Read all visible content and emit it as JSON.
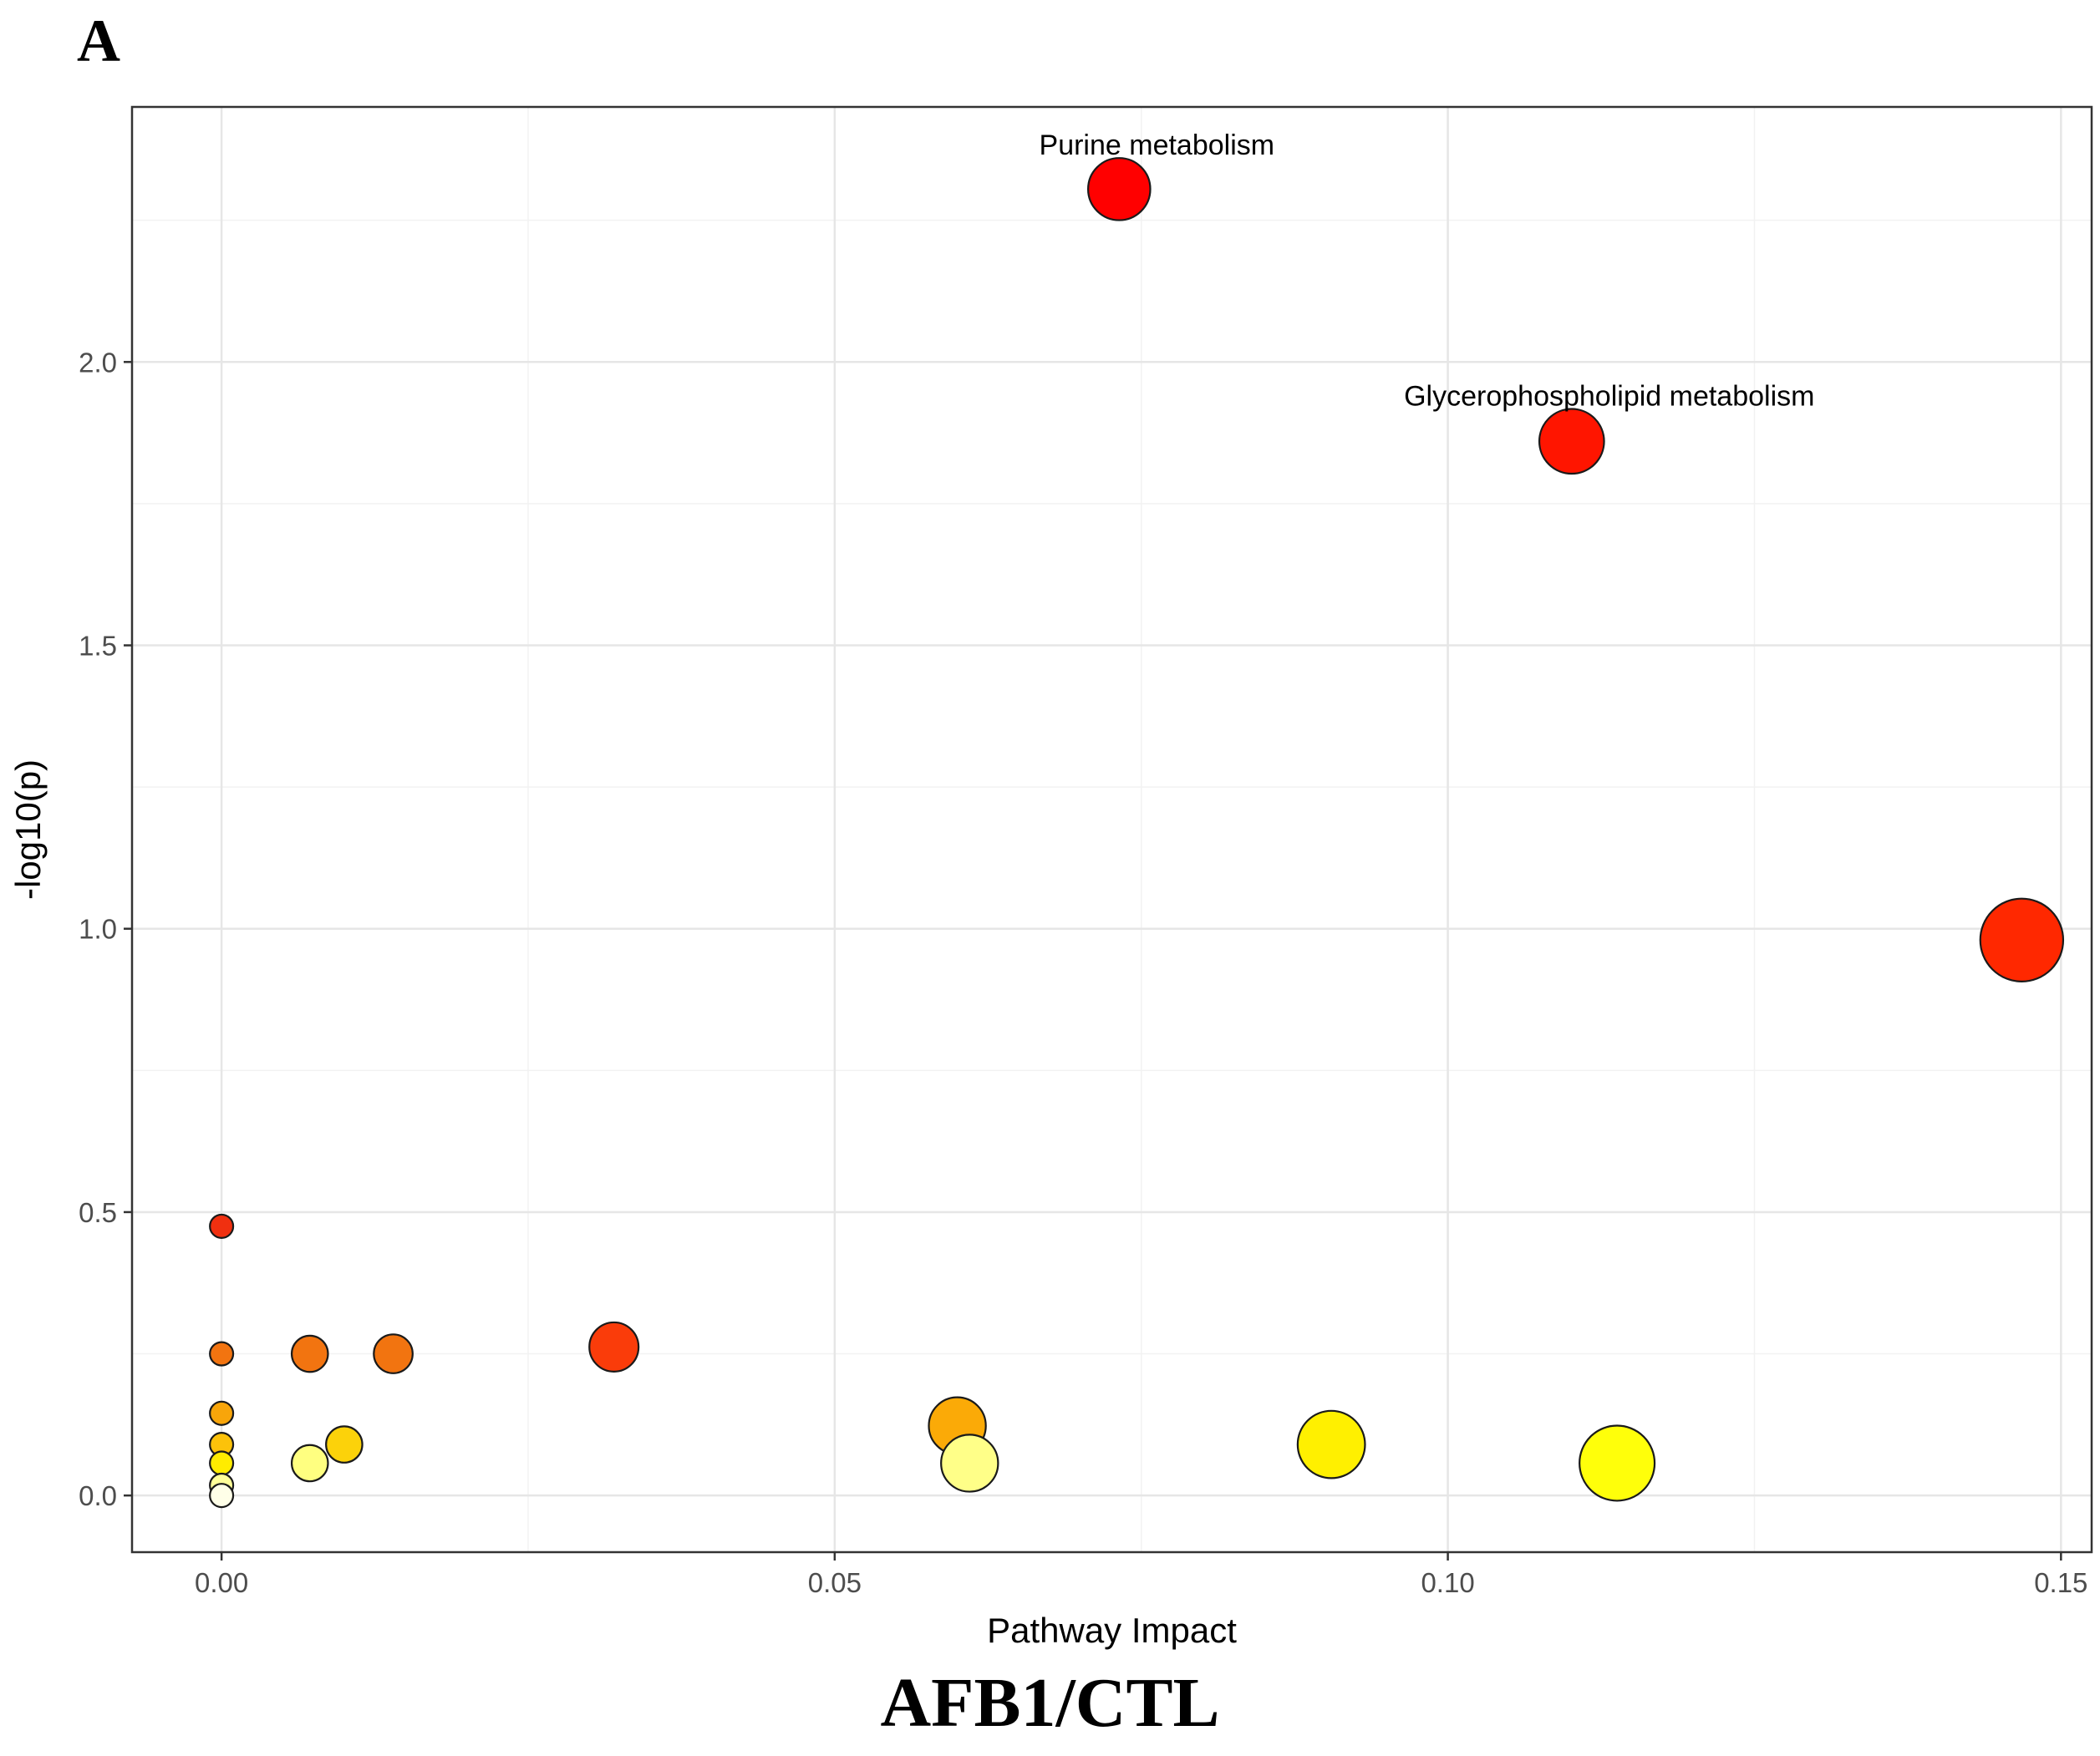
{
  "panel_label": "A",
  "caption": "AFB1/CTL",
  "chart_data": {
    "type": "scatter",
    "title": "",
    "xlabel": "Pathway Impact",
    "ylabel": "-log10(p)",
    "xlim": [
      -0.0073,
      0.1525
    ],
    "ylim": [
      -0.1,
      2.45
    ],
    "xticks": [
      0.0,
      0.05,
      0.1,
      0.15
    ],
    "xtick_labels": [
      "0.00",
      "0.05",
      "0.10",
      "0.15"
    ],
    "yticks": [
      0.0,
      0.5,
      1.0,
      1.5,
      2.0
    ],
    "ytick_labels": [
      "0.0",
      "0.5",
      "1.0",
      "1.5",
      "2.0"
    ],
    "grid": true,
    "points": [
      {
        "x": 0.0,
        "y": 0.475,
        "size": 4.5,
        "color": "#f03010",
        "label": ""
      },
      {
        "x": 0.0,
        "y": 0.25,
        "size": 4.5,
        "color": "#f27410",
        "label": ""
      },
      {
        "x": 0.0,
        "y": 0.145,
        "size": 4.5,
        "color": "#f8a50a",
        "label": ""
      },
      {
        "x": 0.0,
        "y": 0.09,
        "size": 4.5,
        "color": "#fcc20a",
        "label": ""
      },
      {
        "x": 0.0,
        "y": 0.057,
        "size": 4.5,
        "color": "#ffec00",
        "label": ""
      },
      {
        "x": 0.0,
        "y": 0.018,
        "size": 4.5,
        "color": "#ffff99",
        "label": ""
      },
      {
        "x": 0.0,
        "y": 0.0,
        "size": 4.5,
        "color": "#ffffe8",
        "label": ""
      },
      {
        "x": 0.0072,
        "y": 0.25,
        "size": 7,
        "color": "#f27410",
        "label": ""
      },
      {
        "x": 0.0072,
        "y": 0.057,
        "size": 7,
        "color": "#ffff80",
        "label": ""
      },
      {
        "x": 0.01,
        "y": 0.09,
        "size": 7,
        "color": "#fcd20a",
        "label": ""
      },
      {
        "x": 0.014,
        "y": 0.25,
        "size": 7.5,
        "color": "#f27410",
        "label": ""
      },
      {
        "x": 0.032,
        "y": 0.262,
        "size": 9.5,
        "color": "#fa3c0a",
        "label": ""
      },
      {
        "x": 0.06,
        "y": 0.123,
        "size": 11,
        "color": "#fbaa07",
        "label": ""
      },
      {
        "x": 0.061,
        "y": 0.057,
        "size": 11,
        "color": "#ffff88",
        "label": ""
      },
      {
        "x": 0.0732,
        "y": 2.305,
        "size": 12,
        "color": "#ff0000",
        "label": "Purine metabolism"
      },
      {
        "x": 0.0905,
        "y": 0.09,
        "size": 13,
        "color": "#fff000",
        "label": ""
      },
      {
        "x": 0.1101,
        "y": 1.86,
        "size": 12.5,
        "color": "#ff1500",
        "label": "Glycerophospholipid metabolism"
      },
      {
        "x": 0.1138,
        "y": 0.057,
        "size": 14.5,
        "color": "#ffff0a",
        "label": ""
      },
      {
        "x": 0.1468,
        "y": 0.98,
        "size": 16,
        "color": "#ff2800",
        "label": ""
      }
    ]
  }
}
